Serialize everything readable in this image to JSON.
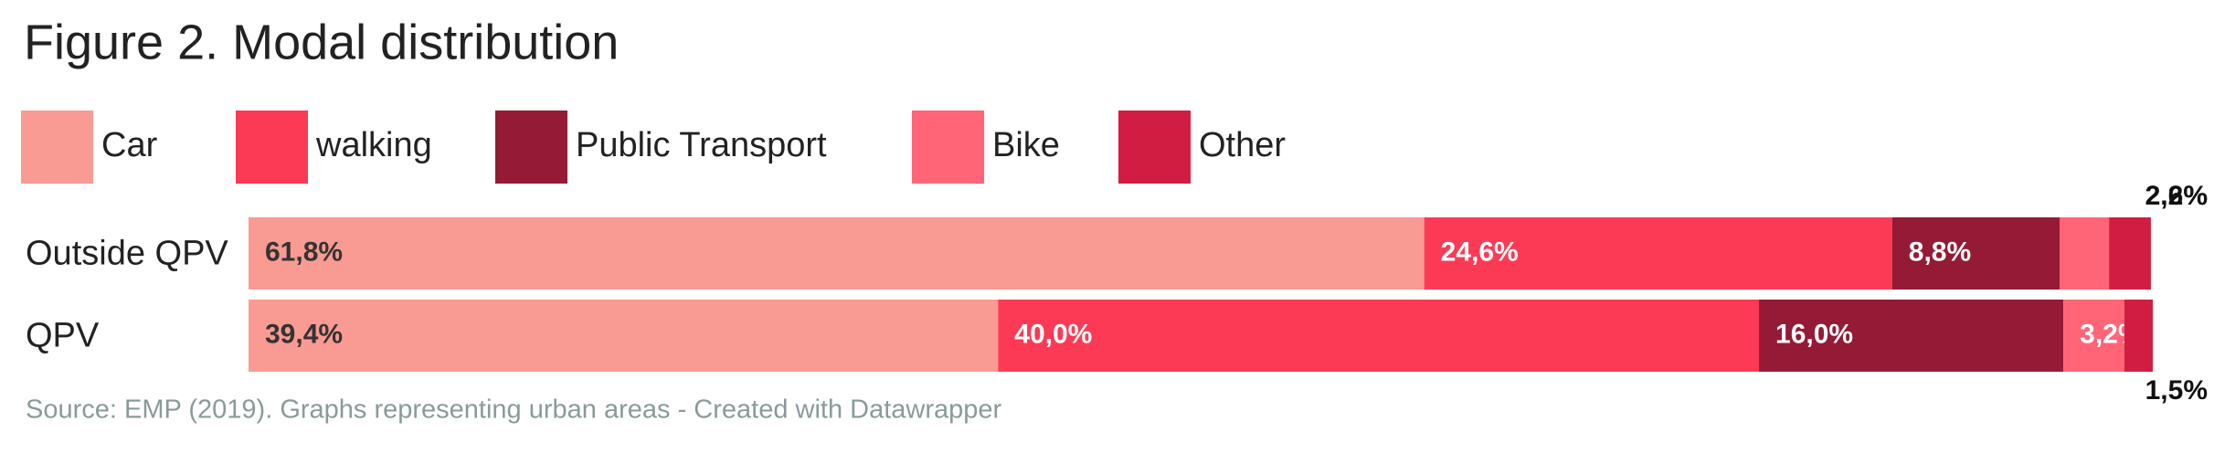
{
  "chart_data": {
    "type": "stacked-bar-horizontal",
    "title": "Figure 2. Modal distribution",
    "source": "Source: EMP (2019). Graphs representing urban areas - Created with Datawrapper",
    "categories": [
      "Outside QPV",
      "QPV"
    ],
    "series": [
      {
        "name": "Car",
        "color": "#f99a93",
        "values": [
          61.8,
          39.4
        ],
        "value_labels": [
          "61,8%",
          "39,4%"
        ]
      },
      {
        "name": "walking",
        "color": "#fd3a55",
        "values": [
          24.6,
          40.0
        ],
        "value_labels": [
          "24,6%",
          "40,0%"
        ]
      },
      {
        "name": "Public Transport",
        "color": "#941a35",
        "values": [
          8.8,
          16.0
        ],
        "value_labels": [
          "8,8%",
          "16,0%"
        ]
      },
      {
        "name": "Bike",
        "color": "#ff6577",
        "values": [
          2.6,
          3.2
        ],
        "value_labels": [
          "2,6%",
          "3,2%"
        ]
      },
      {
        "name": "Other",
        "color": "#d11d41",
        "values": [
          2.2,
          1.5
        ],
        "value_labels": [
          "2,2%",
          "1,5%"
        ]
      }
    ]
  }
}
